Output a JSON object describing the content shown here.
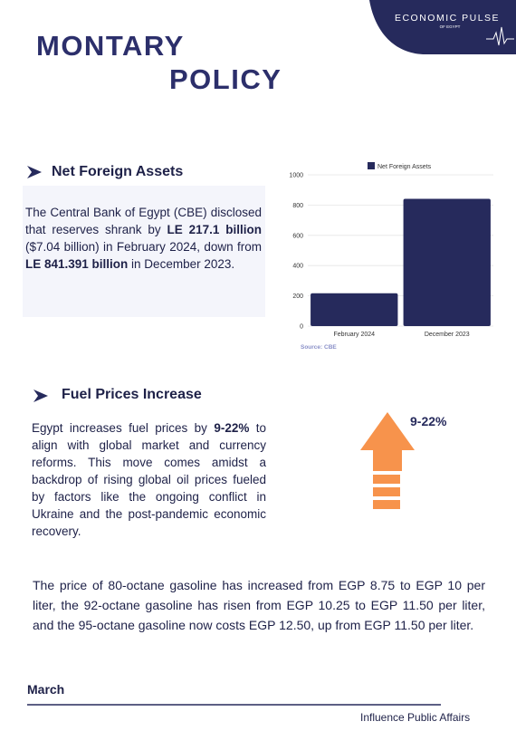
{
  "header": {
    "brand": "ECONOMIC PULSE",
    "subbrand": "OF EGYPT"
  },
  "title": [
    "MONTARY",
    "POLICY"
  ],
  "sections": [
    {
      "heading": "Net Foreign Assets",
      "paragraph": [
        {
          "text": "The Central Bank of Egypt (CBE) disclosed that reserves shrank by ",
          "bold": false
        },
        {
          "text": "LE 217.1 billion",
          "bold": true
        },
        {
          "text": " ($7.04 billion) in February 2024, down from ",
          "bold": false
        },
        {
          "text": "LE 841.391 billion",
          "bold": true
        },
        {
          "text": " in December 2023.",
          "bold": false
        }
      ]
    },
    {
      "heading": "Fuel Prices Increase",
      "paragraph": [
        {
          "text": "Egypt increases fuel prices by ",
          "bold": false
        },
        {
          "text": "9-22%",
          "bold": true
        },
        {
          "text": " to align with global market and currency reforms. This move comes amidst a backdrop of rising global oil prices fueled by factors like the ongoing conflict in Ukraine and the post-pandemic economic recovery.",
          "bold": false
        }
      ],
      "graphic_label": "9-22%"
    }
  ],
  "chart_data": {
    "type": "bar",
    "categories": [
      "February 2024",
      "December 2023"
    ],
    "series": [
      {
        "name": "Net Foreign Assets",
        "color": "#262a5c",
        "values": [
          217.1,
          841.391
        ]
      }
    ],
    "ylim": [
      0,
      1000
    ],
    "yticks": [
      0,
      200,
      400,
      600,
      800,
      1000
    ],
    "grid": true,
    "legend": "top",
    "source": "Source: CBE"
  },
  "closing_paragraph": "The price of 80-octane gasoline has increased from EGP 8.75 to EGP 10 per liter, the 92-octane gasoline has risen from EGP 10.25 to EGP 11.50 per liter, and the 95-octane gasoline now costs EGP 12.50, up from EGP 11.50 per liter.",
  "footer": {
    "month": "March",
    "organization": "Influence Public Affairs"
  }
}
